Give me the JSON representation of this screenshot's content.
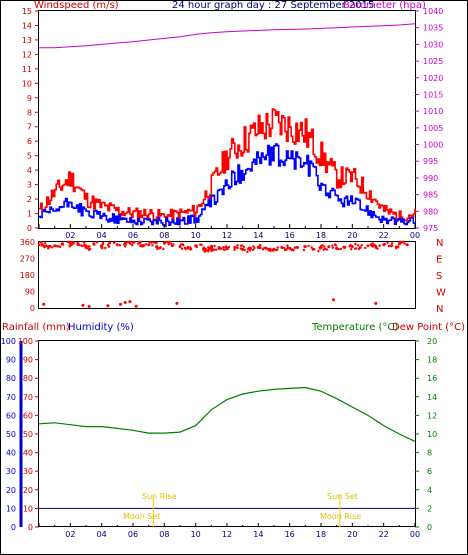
{
  "header": {
    "left": "Windspeed (m/s)",
    "center": "24 hour graph day : 27 September 2015",
    "right": "Barometer (hpa)"
  },
  "labels_mid": {
    "left1": "Rainfall (mm)",
    "left2": "Humidity (%)",
    "right1": "Temperature (°C)",
    "right2": "Dew Point (°C)"
  },
  "colors": {
    "wind": "#ff0000",
    "gust": "#ff0000",
    "avg": "#0000ff",
    "baro": "#cc00cc",
    "dir": "#ff0000",
    "humidity": "#0000ff",
    "temperature": "#008000",
    "dewpoint": "#cc0000",
    "sun": "#ffcc00",
    "moon": "#ffcc00",
    "grid": "#000000"
  },
  "hours": [
    "02",
    "04",
    "06",
    "08",
    "10",
    "12",
    "14",
    "16",
    "18",
    "20",
    "22",
    "00"
  ],
  "astro": {
    "sunrise": "Sun Rise",
    "sunset": "Sun Set",
    "moonset": "Moon Set",
    "moonrise": "Moon Rise"
  },
  "chart_data": [
    {
      "type": "line",
      "title": "24 hour graph day : 27 September 2015",
      "ylabel": "Windspeed (m/s)",
      "y2label": "Barometer (hpa)",
      "ylim": [
        0,
        15
      ],
      "y2lim": [
        975,
        1040
      ],
      "yticks": [
        0,
        1,
        2,
        3,
        4,
        5,
        6,
        7,
        8,
        9,
        10,
        11,
        12,
        13,
        14,
        15
      ],
      "y2ticks": [
        975,
        980,
        985,
        990,
        995,
        1000,
        1005,
        1010,
        1015,
        1020,
        1025,
        1030,
        1035,
        1040
      ],
      "x_hours": [
        0,
        1,
        2,
        3,
        4,
        5,
        6,
        7,
        8,
        9,
        10,
        11,
        12,
        13,
        14,
        15,
        16,
        17,
        18,
        19,
        20,
        21,
        22,
        23,
        24
      ],
      "series": [
        {
          "name": "Wind Gust",
          "values": [
            1.2,
            2.5,
            3.5,
            2.0,
            1.5,
            1.2,
            1.0,
            1.0,
            0.8,
            1.0,
            1.2,
            3.0,
            5.0,
            6.0,
            6.8,
            7.3,
            7.0,
            6.5,
            5.0,
            3.5,
            3.5,
            2.5,
            1.2,
            0.8,
            1.0
          ]
        },
        {
          "name": "Wind Speed",
          "values": [
            0.8,
            1.2,
            1.8,
            1.0,
            0.8,
            0.6,
            0.5,
            0.5,
            0.4,
            0.5,
            0.6,
            1.8,
            3.0,
            4.0,
            4.8,
            5.0,
            4.8,
            4.5,
            3.0,
            2.0,
            1.8,
            1.2,
            0.6,
            0.4,
            0.5
          ]
        },
        {
          "name": "Barometer",
          "values": [
            1029,
            1029,
            1029.3,
            1029.6,
            1030,
            1030.4,
            1030.8,
            1031.3,
            1031.8,
            1032.3,
            1033,
            1033.5,
            1033.8,
            1034,
            1034.2,
            1034.4,
            1034.5,
            1034.6,
            1034.8,
            1035,
            1035.2,
            1035.4,
            1035.6,
            1035.8,
            1036.2
          ]
        }
      ]
    },
    {
      "type": "scatter",
      "ylabel": "Wind Direction",
      "yticks": [
        0,
        90,
        180,
        270,
        360
      ],
      "direction_labels": [
        "N",
        "W",
        "S",
        "E",
        "N"
      ],
      "series": [
        {
          "name": "Direction",
          "x": [
            0.2,
            0.6,
            1.0,
            1.5,
            2.0,
            2.5,
            3.0,
            3.5,
            4.0,
            4.5,
            5.0,
            5.5,
            6.0,
            6.5,
            7.0,
            7.5,
            8.0,
            8.5,
            9.0,
            9.5,
            10.0,
            10.5,
            11.0,
            11.5,
            12.0,
            12.5,
            13.0,
            13.5,
            14.0,
            14.5,
            15.0,
            15.5,
            16.0,
            16.5,
            17.0,
            17.5,
            18.0,
            18.5,
            19.0,
            19.5,
            20.0,
            20.5,
            21.0,
            21.5,
            22.0,
            22.5,
            23.0,
            23.5,
            2.8,
            3.2,
            4.4,
            5.2,
            5.5,
            5.8,
            6.2,
            8.8,
            0.3,
            18.8,
            21.5
          ],
          "y": [
            345,
            335,
            340,
            350,
            355,
            345,
            330,
            350,
            340,
            355,
            345,
            350,
            358,
            340,
            345,
            335,
            355,
            340,
            335,
            330,
            340,
            320,
            325,
            330,
            325,
            330,
            320,
            325,
            330,
            325,
            320,
            330,
            325,
            330,
            335,
            320,
            330,
            335,
            325,
            330,
            335,
            330,
            340,
            335,
            345,
            340,
            350,
            345,
            15,
            8,
            12,
            20,
            30,
            35,
            10,
            25,
            20,
            45,
            25
          ]
        }
      ]
    },
    {
      "type": "line",
      "ylabel": "Rainfall (mm) / Humidity (%)",
      "y2label": "Temperature (°C)",
      "ylim": [
        0,
        100
      ],
      "y2lim": [
        0,
        20
      ],
      "yticks": [
        0,
        10,
        20,
        30,
        40,
        50,
        60,
        70,
        80,
        90,
        100
      ],
      "y2ticks": [
        0,
        2,
        4,
        6,
        8,
        10,
        12,
        14,
        16,
        18,
        20
      ],
      "x_hours": [
        0,
        1,
        2,
        3,
        4,
        5,
        6,
        7,
        8,
        9,
        10,
        11,
        12,
        13,
        14,
        15,
        16,
        17,
        18,
        19,
        20,
        21,
        22,
        23,
        24
      ],
      "series": [
        {
          "name": "Temperature",
          "values": [
            11.1,
            11.2,
            11.0,
            10.8,
            10.8,
            10.6,
            10.4,
            10.1,
            10.1,
            10.2,
            10.9,
            12.6,
            13.7,
            14.3,
            14.6,
            14.8,
            14.9,
            15.0,
            14.6,
            13.8,
            12.9,
            12.0,
            10.9,
            10.0,
            9.2
          ]
        },
        {
          "name": "Rainfall",
          "values": [
            2.0,
            2.0,
            2.0,
            2.0,
            2.0,
            2.0,
            2.0,
            2.0,
            2.0,
            2.0,
            2.0,
            2.0,
            2.0,
            2.0,
            2.0,
            2.0,
            2.0,
            2.0,
            2.0,
            2.0,
            2.0,
            2.0,
            2.0,
            2.0,
            2.0
          ]
        }
      ]
    }
  ]
}
